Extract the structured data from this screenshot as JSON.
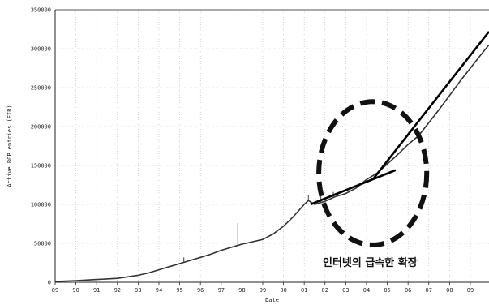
{
  "chart_data": {
    "type": "line",
    "title": "",
    "xlabel": "Date",
    "ylabel": "Active BGP entries (FIB)",
    "xlim": [
      1989,
      2009.9
    ],
    "ylim": [
      0,
      350000
    ],
    "grid": true,
    "x_ticks": [
      "89",
      "90",
      "91",
      "92",
      "93",
      "94",
      "95",
      "96",
      "97",
      "98",
      "99",
      "00",
      "01",
      "02",
      "03",
      "04",
      "05",
      "06",
      "07",
      "08",
      "09"
    ],
    "y_ticks": [
      0,
      50000,
      100000,
      150000,
      200000,
      250000,
      300000,
      350000
    ],
    "series": [
      {
        "name": "",
        "x": [
          1989.0,
          1990.0,
          1991.0,
          1992.0,
          1993.0,
          1993.5,
          1994.0,
          1994.5,
          1995.0,
          1995.5,
          1996.0,
          1996.5,
          1997.0,
          1997.5,
          1998.0,
          1998.5,
          1999.0,
          1999.5,
          2000.0,
          2000.5,
          2001.0,
          2001.2,
          2001.5,
          2002.0,
          2002.5,
          2003.0,
          2003.5,
          2004.0,
          2004.5,
          2005.0,
          2005.5,
          2006.0,
          2006.5,
          2007.0,
          2007.5,
          2008.0,
          2008.5,
          2009.0,
          2009.5,
          2009.9
        ],
        "y": [
          1000,
          2000,
          3500,
          5000,
          9000,
          12000,
          16000,
          20000,
          24000,
          28000,
          32000,
          36000,
          41000,
          45000,
          49000,
          52000,
          55000,
          62000,
          72000,
          85000,
          100000,
          105000,
          100000,
          104000,
          110000,
          114000,
          121000,
          132000,
          140000,
          152000,
          164000,
          177000,
          188000,
          205000,
          222000,
          240000,
          258000,
          275000,
          292000,
          305000
        ]
      }
    ],
    "trend_lines": [
      {
        "x": [
          2001.3,
          2005.4
        ],
        "y": [
          100000,
          144000
        ]
      },
      {
        "x": [
          2004.3,
          2009.9
        ],
        "y": [
          132000,
          322000
        ]
      }
    ],
    "spikes": [
      {
        "x": 1997.8,
        "y": 76000
      },
      {
        "x": 1995.2,
        "y": 32000
      },
      {
        "x": 2001.2,
        "y": 112000
      },
      {
        "x": 2001.8,
        "y": 115000
      },
      {
        "x": 2002.4,
        "y": 116000
      },
      {
        "x": 2004.9,
        "y": 152000
      },
      {
        "x": 1999.6,
        "y": 64000
      }
    ],
    "annotation": {
      "text": "인터넷의 급속한 확장",
      "circle_center": {
        "x": 2004.3,
        "y": 140000
      },
      "circle_radius": {
        "x": 2.6,
        "y": 92000
      }
    }
  }
}
